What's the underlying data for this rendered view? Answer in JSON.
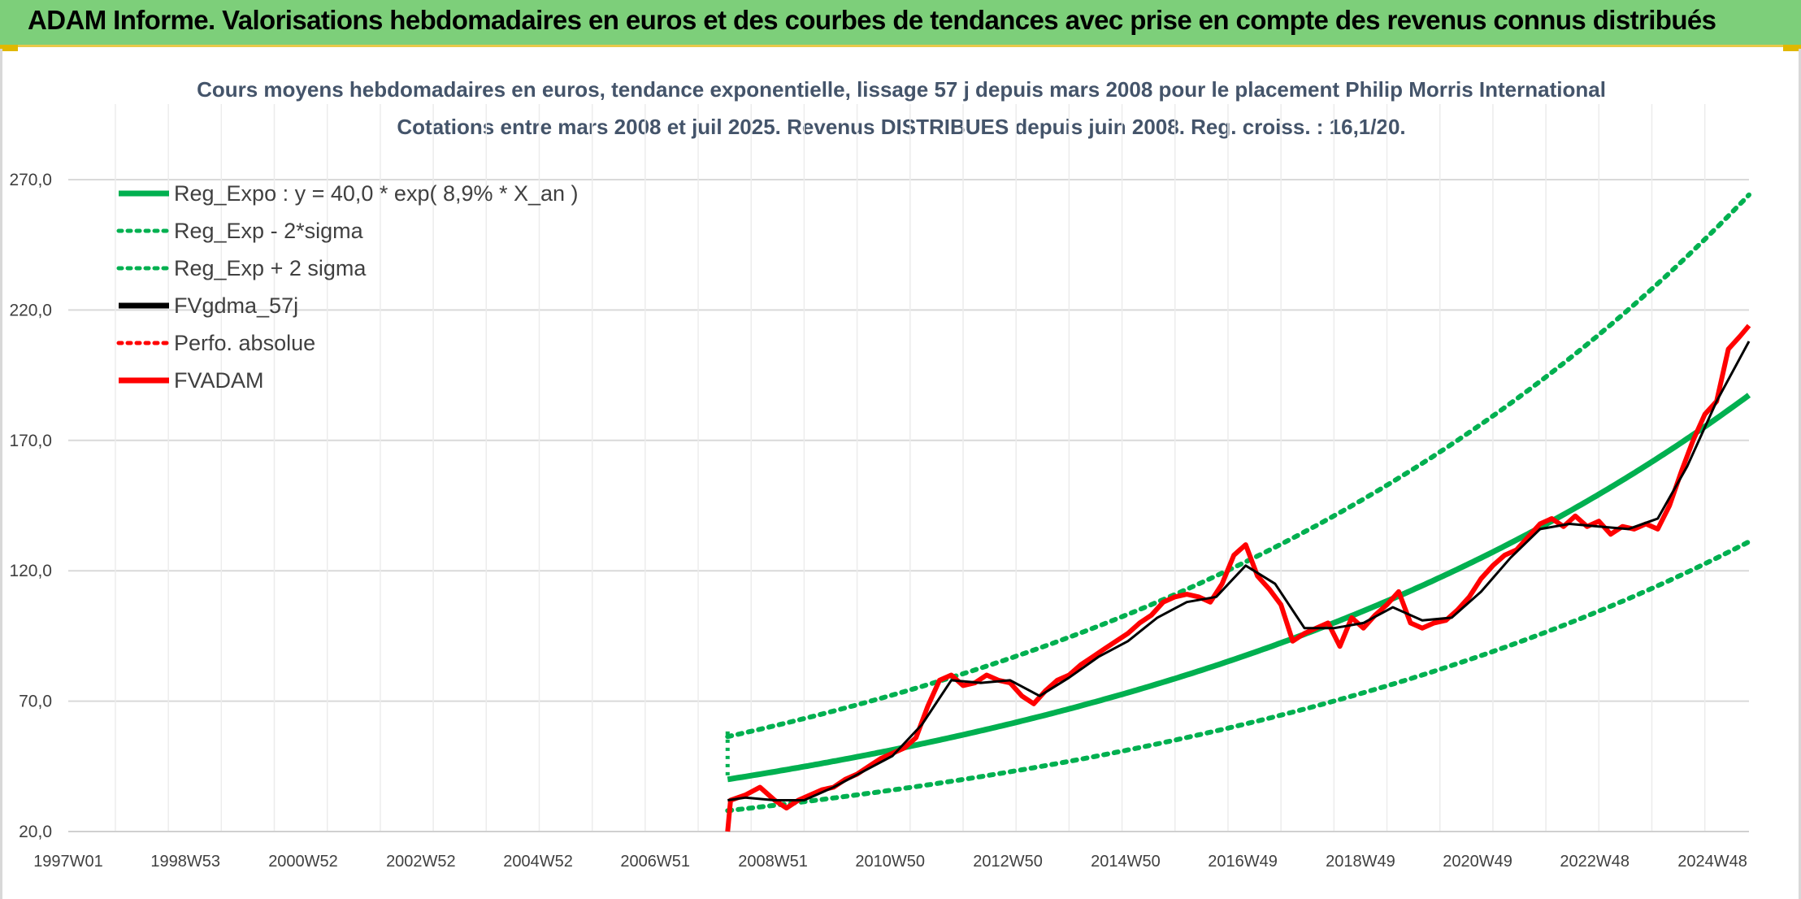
{
  "banner": {
    "title": "ADAM Informe. Valorisations hebdomadaires en euros et des courbes de tendances avec prise en compte des revenus connus distribués"
  },
  "colors": {
    "banner_bg": "#7dcf7a",
    "trend_green": "#00b050",
    "price_red": "#ff0000",
    "ma_black": "#000000",
    "grid": "#d9d9d9"
  },
  "chart_data": {
    "type": "line",
    "title": "Cours moyens hebdomadaires en euros, tendance exponentielle, lissage 57 j depuis mars 2008 pour le placement Philip Morris International",
    "subtitle": "Cotations entre mars 2008 et juil 2025. Revenus DISTRIBUES depuis juin 2008. Reg. croiss. : 16,1/20.",
    "xlabel": "",
    "ylabel": "",
    "ylim": [
      20,
      270
    ],
    "y_ticks": [
      "20,0",
      "70,0",
      "120,0",
      "170,0",
      "220,0",
      "270,0"
    ],
    "x_ticks": [
      "1997W01",
      "1998W53",
      "2000W52",
      "2002W52",
      "2004W52",
      "2006W51",
      "2008W51",
      "2010W50",
      "2012W50",
      "2014W50",
      "2016W49",
      "2018W49",
      "2020W49",
      "2022W48",
      "2024W48"
    ],
    "x_range_years": [
      1997.0,
      2025.55
    ],
    "grid": true,
    "legend_position": "top-left",
    "legend": [
      {
        "label": "Reg_Expo : y = 40,0 * exp( 8,9% *  X_an )",
        "style": "solid",
        "color": "#00b050"
      },
      {
        "label": "Reg_Exp - 2*sigma",
        "style": "dotted",
        "color": "#00b050"
      },
      {
        "label": "Reg_Exp + 2 sigma",
        "style": "dotted",
        "color": "#00b050"
      },
      {
        "label": "FVgdma_57j",
        "style": "solid",
        "color": "#000000"
      },
      {
        "label": "Perfo. absolue",
        "style": "dotted",
        "color": "#ff0000"
      },
      {
        "label": "FVADAM",
        "style": "solid",
        "color": "#ff0000"
      }
    ],
    "regression": {
      "start_year": 2008.2,
      "a": 40.0,
      "rate": 0.089,
      "factor_minus": 0.7,
      "factor_plus": 1.41
    },
    "series": [
      {
        "name": "FVADAM",
        "x": [
          2008.2,
          2008.25,
          2008.5,
          2008.75,
          2009.0,
          2009.2,
          2009.4,
          2009.6,
          2009.8,
          2010.0,
          2010.2,
          2010.4,
          2010.6,
          2010.8,
          2011.0,
          2011.2,
          2011.4,
          2011.6,
          2011.8,
          2012.0,
          2012.2,
          2012.4,
          2012.6,
          2012.8,
          2013.0,
          2013.2,
          2013.4,
          2013.6,
          2013.8,
          2014.0,
          2014.2,
          2014.4,
          2014.6,
          2014.8,
          2015.0,
          2015.2,
          2015.4,
          2015.6,
          2015.8,
          2016.0,
          2016.2,
          2016.4,
          2016.6,
          2016.8,
          2017.0,
          2017.2,
          2017.4,
          2017.6,
          2017.8,
          2018.0,
          2018.2,
          2018.4,
          2018.6,
          2018.8,
          2019.0,
          2019.2,
          2019.4,
          2019.6,
          2019.8,
          2020.0,
          2020.2,
          2020.4,
          2020.6,
          2020.8,
          2021.0,
          2021.2,
          2021.4,
          2021.6,
          2021.8,
          2022.0,
          2022.2,
          2022.4,
          2022.6,
          2022.8,
          2023.0,
          2023.2,
          2023.4,
          2023.6,
          2023.8,
          2024.0,
          2024.2,
          2024.4,
          2024.6,
          2024.8,
          2025.0,
          2025.2,
          2025.4,
          2025.55
        ],
        "y": [
          20,
          32,
          34,
          37,
          32,
          29,
          32,
          34,
          36,
          37,
          40,
          42,
          45,
          48,
          50,
          52,
          56,
          68,
          78,
          80,
          76,
          77,
          80,
          78,
          77,
          72,
          69,
          74,
          78,
          80,
          84,
          87,
          90,
          93,
          96,
          100,
          103,
          108,
          110,
          111,
          110,
          108,
          115,
          126,
          130,
          118,
          113,
          107,
          93,
          96,
          98,
          100,
          91,
          102,
          98,
          103,
          107,
          112,
          100,
          98,
          100,
          101,
          105,
          110,
          117,
          122,
          126,
          128,
          133,
          138,
          140,
          137,
          141,
          137,
          139,
          134,
          137,
          136,
          138,
          136,
          145,
          158,
          170,
          180,
          185,
          205,
          210,
          214
        ]
      },
      {
        "name": "FVgdma_57j",
        "x": [
          2008.2,
          2008.5,
          2009.0,
          2009.5,
          2010.0,
          2010.5,
          2011.0,
          2011.5,
          2012.0,
          2012.5,
          2013.0,
          2013.5,
          2014.0,
          2014.5,
          2015.0,
          2015.5,
          2016.0,
          2016.5,
          2017.0,
          2017.5,
          2018.0,
          2018.5,
          2019.0,
          2019.5,
          2020.0,
          2020.5,
          2021.0,
          2021.5,
          2022.0,
          2022.5,
          2023.0,
          2023.5,
          2024.0,
          2024.5,
          2025.0,
          2025.55
        ],
        "y": [
          32,
          33,
          32,
          32,
          37,
          43,
          49,
          61,
          78,
          77,
          78,
          72,
          79,
          87,
          93,
          102,
          108,
          110,
          122,
          115,
          98,
          98,
          100,
          106,
          101,
          102,
          112,
          125,
          136,
          138,
          137,
          136,
          140,
          160,
          185,
          208
        ]
      }
    ]
  }
}
